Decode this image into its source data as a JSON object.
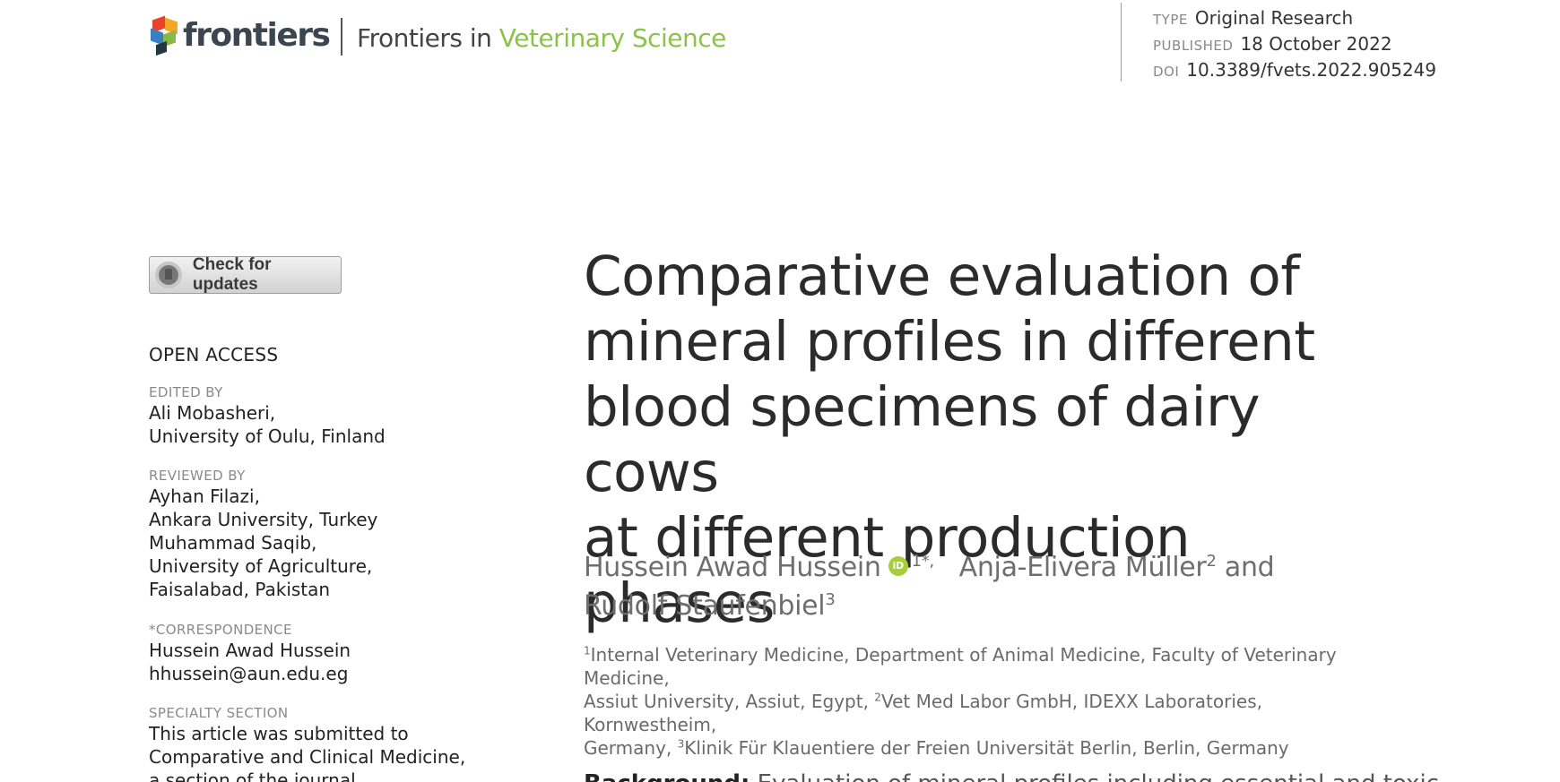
{
  "header": {
    "logo_text": "frontiers",
    "journal_prefix": "Frontiers in",
    "journal_name": "Veterinary Science",
    "accent_color": "#8bc34a"
  },
  "meta": {
    "type_label": "TYPE",
    "type_value": "Original Research",
    "published_label": "PUBLISHED",
    "published_value": "18 October 2022",
    "doi_label": "DOI",
    "doi_value": "10.3389/fvets.2022.905249"
  },
  "updates_button": {
    "label": "Check for updates",
    "icon": "bookmark-icon"
  },
  "sidebar": {
    "open_access": "OPEN ACCESS",
    "edited_label": "EDITED BY",
    "edited_lines": [
      "Ali Mobasheri,",
      "University of Oulu, Finland"
    ],
    "reviewed_label": "REVIEWED BY",
    "reviewed_lines": [
      "Ayhan Filazi,",
      "Ankara University, Turkey",
      "Muhammad Saqib,",
      "University of Agriculture,",
      "Faisalabad, Pakistan"
    ],
    "correspondence_label": "*CORRESPONDENCE",
    "correspondence_lines": [
      "Hussein Awad Hussein",
      "hhussein@aun.edu.eg"
    ],
    "specialty_label": "SPECIALTY SECTION",
    "specialty_lines": [
      "This article was submitted to",
      "Comparative and Clinical Medicine,",
      "a section of the journal"
    ]
  },
  "article": {
    "title_lines": [
      "Comparative evaluation of",
      "mineral profiles in different",
      "blood specimens of dairy cows",
      "at different production phases"
    ],
    "author1": "Hussein Awad Hussein",
    "author1_sup": "1*,",
    "author2": "Anja-Elivera Müller",
    "author2_sup": "2",
    "and": "and",
    "author3": "Rudolf Staufenbiel",
    "author3_sup": "3",
    "affil_1_sup": "1",
    "affil_1": "Internal Veterinary Medicine, Department of Animal Medicine, Faculty of Veterinary Medicine,",
    "affil_1b": "Assiut University, Assiut, Egypt, ",
    "affil_2_sup": "2",
    "affil_2": "Vet Med Labor GmbH, IDEXX Laboratories, Kornwestheim,",
    "affil_2b": "Germany, ",
    "affil_3_sup": "3",
    "affil_3": "Klinik Für Klauentiere der Freien Universität Berlin, Berlin, Germany",
    "abstract_label": "Background:",
    "abstract_start": "Evaluation of mineral profiles including essential and toxic"
  }
}
